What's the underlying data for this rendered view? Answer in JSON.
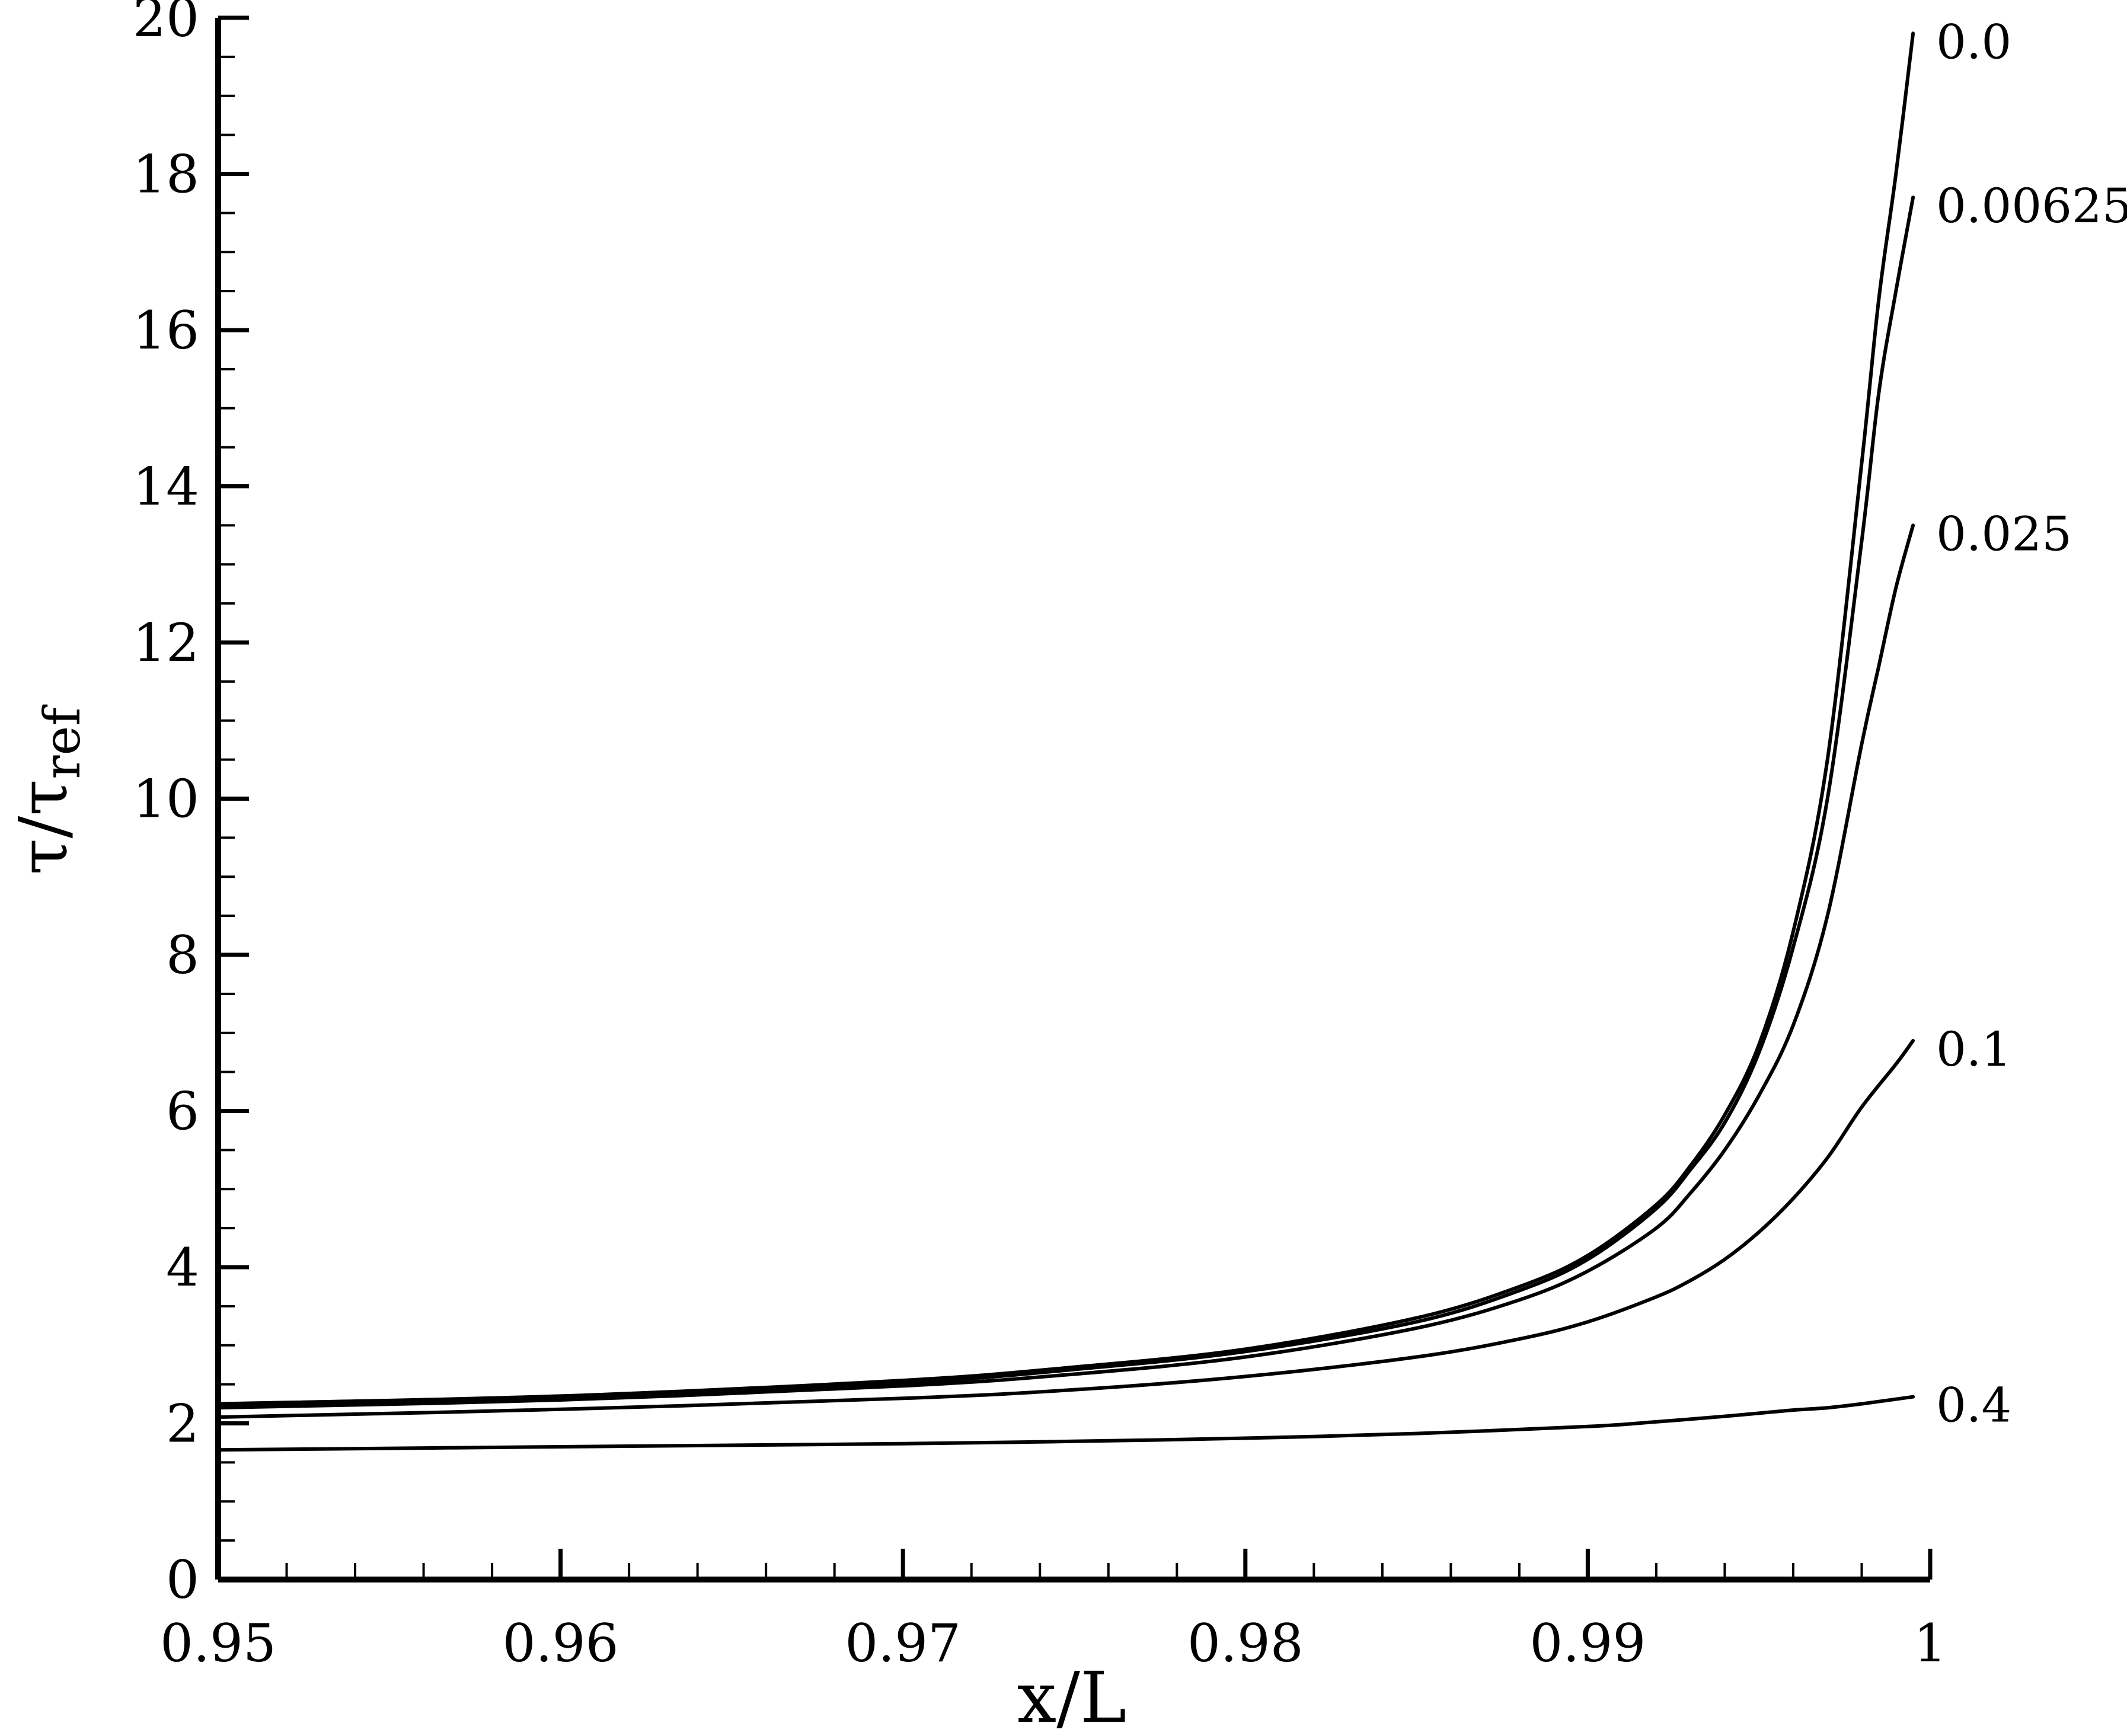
{
  "chart_data": {
    "type": "line",
    "title": "",
    "xlabel": "x/L",
    "ylabel": {
      "base": "τ/τ",
      "subscript": "ref"
    },
    "xlim": [
      0.95,
      1.0
    ],
    "ylim": [
      0,
      20
    ],
    "xticks": [
      "0.95",
      "0.96",
      "0.97",
      "0.98",
      "0.99",
      "1"
    ],
    "yticks": [
      "0",
      "2",
      "4",
      "6",
      "8",
      "10",
      "12",
      "14",
      "16",
      "18",
      "20"
    ],
    "grid": false,
    "legend": "labels at line ends (right)",
    "series": [
      {
        "name": "0.0",
        "label": "0.0",
        "x": [
          0.95,
          0.96,
          0.97,
          0.975,
          0.98,
          0.985,
          0.988,
          0.99,
          0.992,
          0.993,
          0.994,
          0.995,
          0.996,
          0.997,
          0.998,
          0.9985,
          0.999,
          0.9995
        ],
        "y": [
          2.25,
          2.35,
          2.55,
          2.72,
          2.95,
          3.35,
          3.75,
          4.15,
          4.8,
          5.3,
          5.95,
          6.85,
          8.3,
          10.5,
          14.3,
          16.4,
          18.0,
          19.8
        ]
      },
      {
        "name": "0.00625",
        "label": "0.00625",
        "x": [
          0.95,
          0.96,
          0.97,
          0.975,
          0.98,
          0.985,
          0.988,
          0.99,
          0.992,
          0.993,
          0.994,
          0.995,
          0.996,
          0.997,
          0.998,
          0.9985,
          0.999,
          0.9995
        ],
        "y": [
          2.22,
          2.33,
          2.52,
          2.69,
          2.92,
          3.3,
          3.7,
          4.1,
          4.75,
          5.25,
          5.85,
          6.75,
          8.1,
          10.0,
          13.3,
          15.2,
          16.5,
          17.7
        ]
      },
      {
        "name": "0.025",
        "label": "0.025",
        "x": [
          0.95,
          0.96,
          0.97,
          0.975,
          0.98,
          0.985,
          0.988,
          0.99,
          0.992,
          0.993,
          0.994,
          0.995,
          0.996,
          0.997,
          0.998,
          0.9985,
          0.999,
          0.9995
        ],
        "y": [
          2.2,
          2.3,
          2.48,
          2.63,
          2.85,
          3.22,
          3.58,
          3.95,
          4.5,
          4.95,
          5.5,
          6.2,
          7.1,
          8.5,
          10.7,
          11.7,
          12.7,
          13.5
        ]
      },
      {
        "name": "0.1",
        "label": "0.1",
        "x": [
          0.95,
          0.96,
          0.97,
          0.975,
          0.98,
          0.985,
          0.988,
          0.99,
          0.992,
          0.993,
          0.994,
          0.995,
          0.996,
          0.997,
          0.998,
          0.999,
          0.9995
        ],
        "y": [
          2.08,
          2.18,
          2.32,
          2.43,
          2.6,
          2.85,
          3.08,
          3.3,
          3.62,
          3.83,
          4.1,
          4.45,
          4.88,
          5.4,
          6.05,
          6.6,
          6.9
        ]
      },
      {
        "name": "0.4",
        "label": "0.4",
        "x": [
          0.95,
          0.96,
          0.97,
          0.975,
          0.98,
          0.985,
          0.99,
          0.992,
          0.994,
          0.995,
          0.996,
          0.997,
          0.998,
          0.999,
          0.9995
        ],
        "y": [
          1.66,
          1.7,
          1.74,
          1.77,
          1.81,
          1.87,
          1.96,
          2.02,
          2.09,
          2.13,
          2.17,
          2.2,
          2.25,
          2.31,
          2.34
        ]
      }
    ],
    "colors": {
      "line": "#000000",
      "axis": "#000000",
      "background": "#ffffff"
    }
  }
}
